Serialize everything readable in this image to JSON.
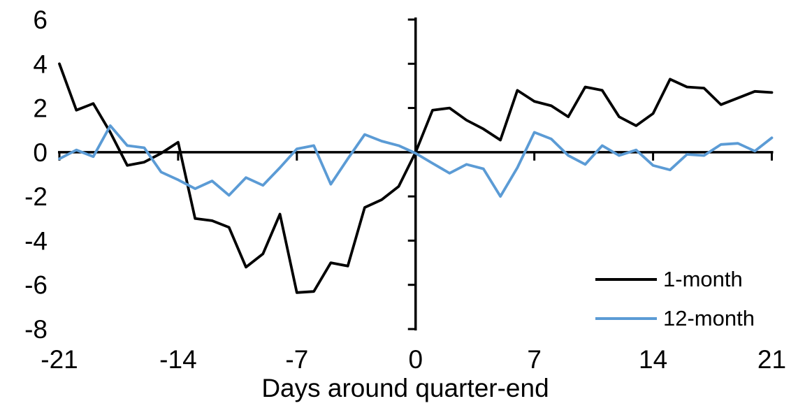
{
  "chart_data": {
    "type": "line",
    "title": "",
    "xlabel": "Days around quarter-end",
    "ylabel": "",
    "xlim": [
      -21,
      21
    ],
    "ylim": [
      -8,
      6
    ],
    "x_ticks": [
      -21,
      -14,
      -7,
      0,
      7,
      14,
      21
    ],
    "y_ticks": [
      6,
      4,
      2,
      0,
      -2,
      -4,
      -6,
      -8
    ],
    "grid": false,
    "legend_position": "inside-bottom-right",
    "axis_color": "#000000",
    "x": [
      -21,
      -20,
      -19,
      -18,
      -17,
      -16,
      -15,
      -14,
      -13,
      -12,
      -11,
      -10,
      -9,
      -8,
      -7,
      -6,
      -5,
      -4,
      -3,
      -2,
      -1,
      0,
      1,
      2,
      3,
      4,
      5,
      6,
      7,
      8,
      9,
      10,
      11,
      12,
      13,
      14,
      15,
      16,
      17,
      18,
      19,
      20,
      21
    ],
    "series": [
      {
        "name": "1-month",
        "color": "#000000",
        "values": [
          4.0,
          1.9,
          2.2,
          0.9,
          -0.6,
          -0.45,
          -0.05,
          0.45,
          -3.0,
          -3.1,
          -3.4,
          -5.2,
          -4.6,
          -2.8,
          -6.35,
          -6.3,
          -5.0,
          -5.15,
          -2.5,
          -2.15,
          -1.55,
          0.0,
          1.9,
          2.0,
          1.45,
          1.05,
          0.55,
          2.8,
          2.3,
          2.1,
          1.6,
          2.95,
          2.8,
          1.6,
          1.2,
          1.75,
          3.3,
          2.95,
          2.9,
          2.15,
          2.45,
          2.75,
          2.7
        ]
      },
      {
        "name": "12-month",
        "color": "#5B9BD5",
        "values": [
          -0.3,
          0.1,
          -0.2,
          1.2,
          0.3,
          0.2,
          -0.9,
          -1.25,
          -1.65,
          -1.3,
          -1.95,
          -1.15,
          -1.5,
          -0.7,
          0.15,
          0.3,
          -1.45,
          -0.3,
          0.8,
          0.5,
          0.3,
          -0.05,
          -0.5,
          -0.95,
          -0.55,
          -0.75,
          -2.0,
          -0.7,
          0.9,
          0.6,
          -0.15,
          -0.55,
          0.3,
          -0.15,
          0.1,
          -0.6,
          -0.8,
          -0.1,
          -0.15,
          0.35,
          0.4,
          0.05,
          0.65
        ]
      }
    ]
  }
}
